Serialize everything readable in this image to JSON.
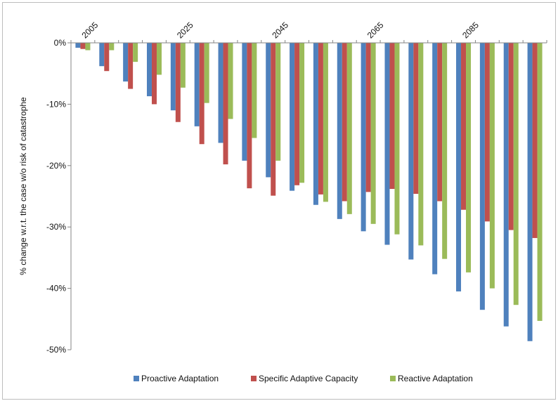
{
  "chart_data": {
    "type": "bar",
    "ylabel": "% change w.r.t. the case w/o risk of catastrophe",
    "ylim": [
      -50,
      0
    ],
    "yticks": [
      0,
      -10,
      -20,
      -30,
      -40,
      -50
    ],
    "ytick_labels": [
      "0%",
      "-10%",
      "-20%",
      "-30%",
      "-40%",
      "-50%"
    ],
    "xtick_labels": [
      "2005",
      "2025",
      "2045",
      "2065",
      "2085"
    ],
    "categories": [
      "2005",
      "2010",
      "2015",
      "2020",
      "2025",
      "2030",
      "2035",
      "2040",
      "2045",
      "2050",
      "2055",
      "2060",
      "2065",
      "2070",
      "2075",
      "2080",
      "2085",
      "2090",
      "2095",
      "2100"
    ],
    "legend_position": "bottom",
    "series": [
      {
        "name": "Proactive Adaptation",
        "color": "#4f81bd",
        "values": [
          -0.8,
          -3.8,
          -6.3,
          -8.7,
          -11.0,
          -13.6,
          -16.3,
          -19.2,
          -21.9,
          -24.1,
          -26.4,
          -28.7,
          -30.7,
          -32.9,
          -35.3,
          -37.7,
          -40.5,
          -43.5,
          -46.2,
          -48.6
        ]
      },
      {
        "name": "Specific Adaptive Capacity",
        "color": "#c0504d",
        "values": [
          -1.0,
          -4.6,
          -7.5,
          -10.0,
          -12.9,
          -16.5,
          -19.8,
          -23.7,
          -24.9,
          -23.2,
          -24.7,
          -25.8,
          -24.3,
          -23.8,
          -24.6,
          -25.8,
          -27.2,
          -29.1,
          -30.5,
          -31.8
        ]
      },
      {
        "name": "Reactive Adaptation",
        "color": "#9bbb59",
        "values": [
          -1.2,
          -1.2,
          -3.1,
          -5.2,
          -7.3,
          -9.8,
          -12.4,
          -15.5,
          -19.2,
          -22.8,
          -25.9,
          -27.9,
          -29.5,
          -31.2,
          -33.0,
          -35.2,
          -37.4,
          -40.0,
          -42.7,
          -45.3
        ]
      }
    ]
  }
}
